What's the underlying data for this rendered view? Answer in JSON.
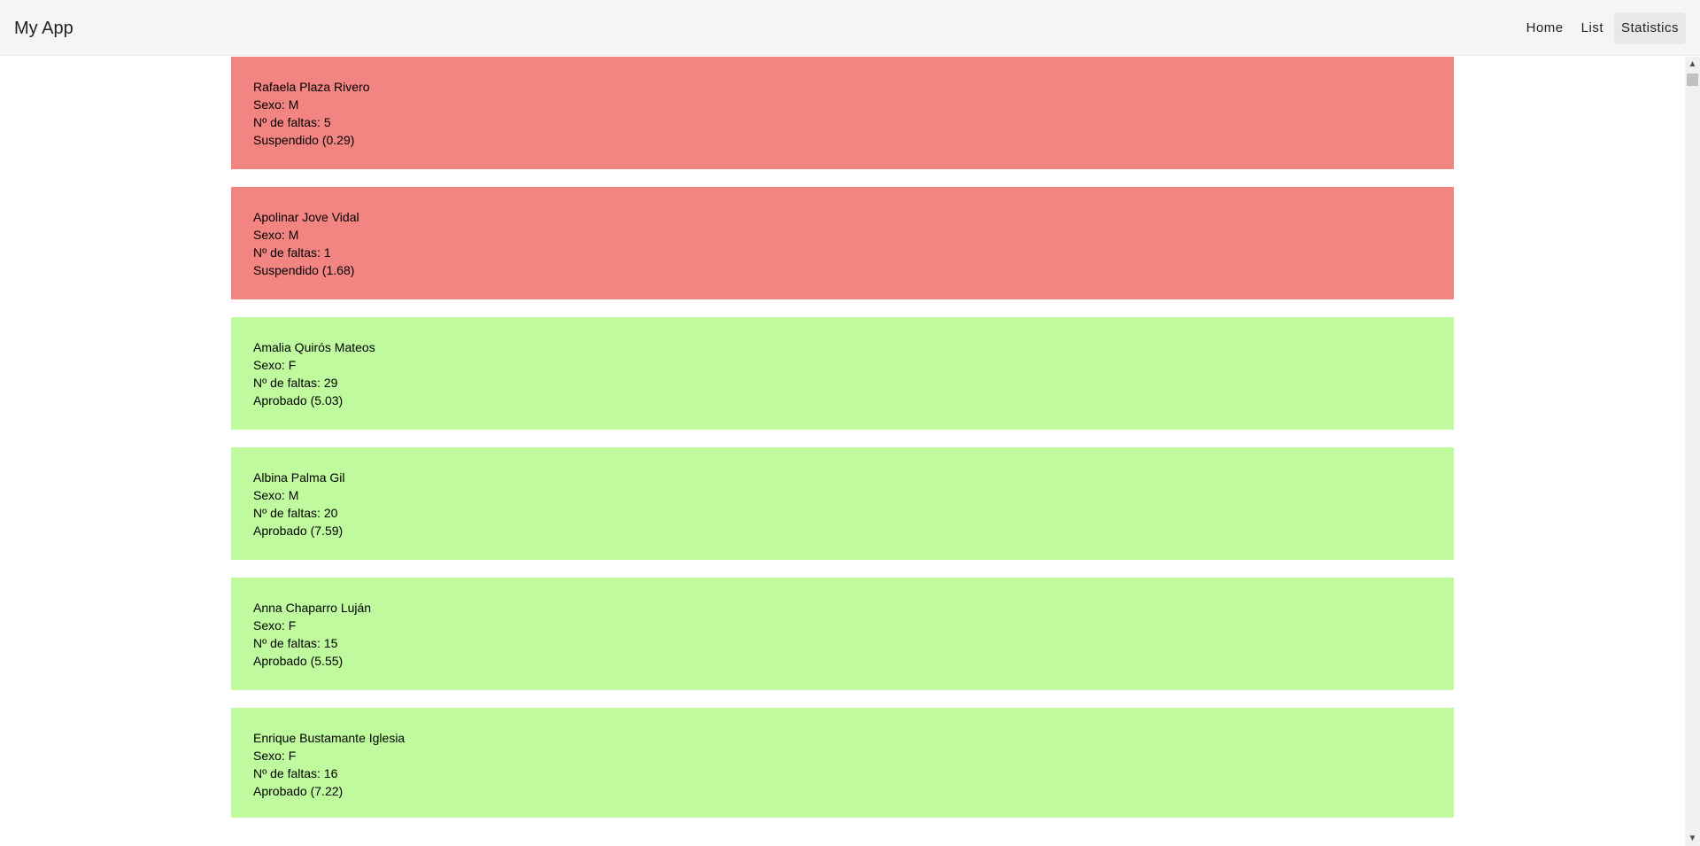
{
  "header": {
    "title": "My App",
    "nav": [
      {
        "label": "Home",
        "active": false
      },
      {
        "label": "List",
        "active": false
      },
      {
        "label": "Statistics",
        "active": true
      }
    ]
  },
  "colors": {
    "fail": "#f28482",
    "pass": "#c0fa9f"
  },
  "students": [
    {
      "name": "Rafaela Plaza Rivero",
      "sex": "Sexo: M",
      "absences": "Nº de faltas: 5",
      "result": "Suspendido (0.29)",
      "status": "fail"
    },
    {
      "name": "Apolinar Jove Vidal",
      "sex": "Sexo: M",
      "absences": "Nº de faltas: 1",
      "result": "Suspendido (1.68)",
      "status": "fail"
    },
    {
      "name": "Amalia Quirós Mateos",
      "sex": "Sexo: F",
      "absences": "Nº de faltas: 29",
      "result": "Aprobado (5.03)",
      "status": "pass"
    },
    {
      "name": "Albina Palma Gil",
      "sex": "Sexo: M",
      "absences": "Nº de faltas: 20",
      "result": "Aprobado (7.59)",
      "status": "pass"
    },
    {
      "name": "Anna Chaparro Luján",
      "sex": "Sexo: F",
      "absences": "Nº de faltas: 15",
      "result": "Aprobado (5.55)",
      "status": "pass"
    },
    {
      "name": "Enrique Bustamante Iglesia",
      "sex": "Sexo: F",
      "absences": "Nº de faltas: 16",
      "result": "Aprobado (7.22)",
      "status": "pass"
    }
  ]
}
